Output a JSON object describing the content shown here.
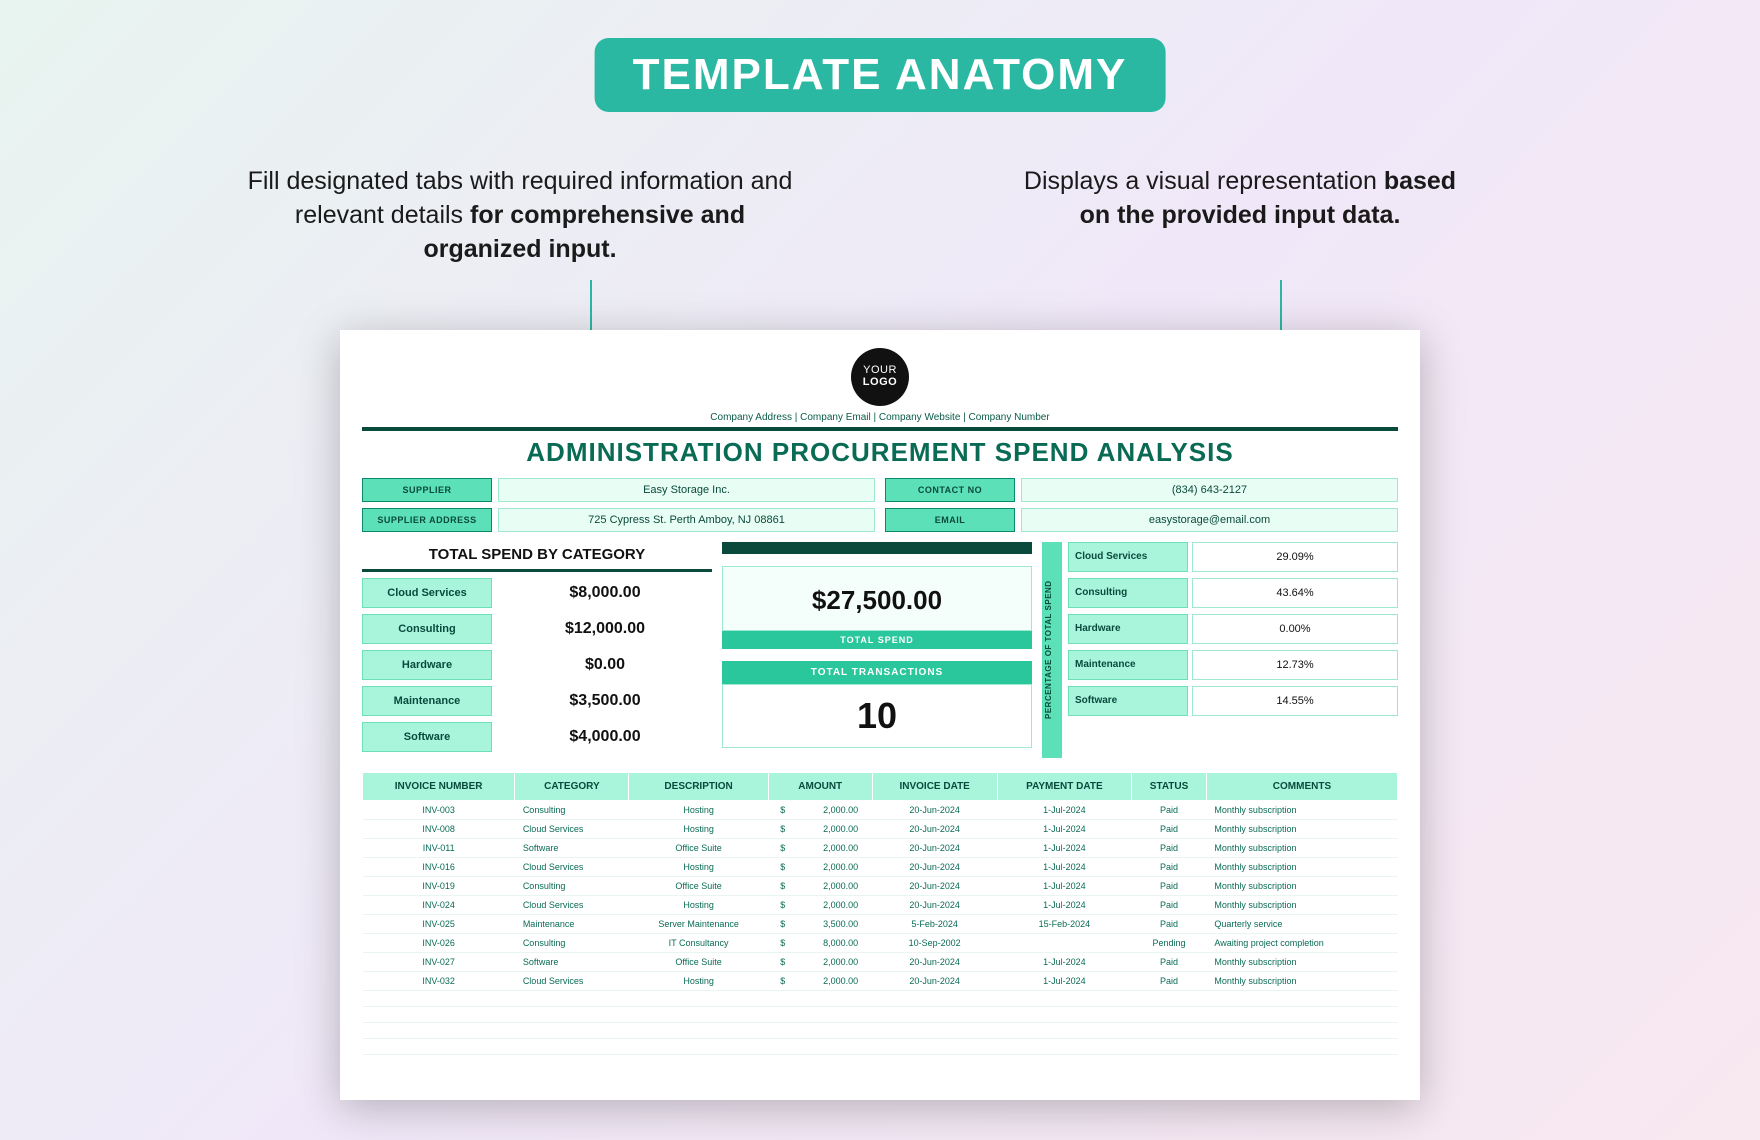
{
  "title": "TEMPLATE ANATOMY",
  "callout_left_a": "Fill designated tabs with required information and relevant details ",
  "callout_left_b": "for comprehensive and organized input.",
  "callout_right_a": "Displays a visual representation ",
  "callout_right_b": "based on the provided input data.",
  "logo_line1": "YOUR",
  "logo_line2": "LOGO",
  "contact_line": "Company Address   |   Company Email   |   Company Website   |   Company Number",
  "doc_title": "ADMINISTRATION PROCUREMENT SPEND ANALYSIS",
  "info": {
    "supplier_lbl": "SUPPLIER",
    "supplier_val": "Easy Storage Inc.",
    "contact_lbl": "CONTACT NO",
    "contact_val": "(834) 643-2127",
    "address_lbl": "SUPPLIER  ADDRESS",
    "address_val": "725 Cypress St. Perth Amboy, NJ 08861",
    "email_lbl": "EMAIL",
    "email_val": "easystorage@email.com"
  },
  "cat_title": "TOTAL SPEND BY CATEGORY",
  "categories": [
    {
      "name": "Cloud Services",
      "amount": "$8,000.00",
      "pct": "29.09%"
    },
    {
      "name": "Consulting",
      "amount": "$12,000.00",
      "pct": "43.64%"
    },
    {
      "name": "Hardware",
      "amount": "$0.00",
      "pct": "0.00%"
    },
    {
      "name": "Maintenance",
      "amount": "$3,500.00",
      "pct": "12.73%"
    },
    {
      "name": "Software",
      "amount": "$4,000.00",
      "pct": "14.55%"
    }
  ],
  "total_spend": "$27,500.00",
  "total_spend_lbl": "TOTAL SPEND",
  "total_trans_lbl": "TOTAL TRANSACTIONS",
  "total_trans": "10",
  "pct_sidebar": "PERCENTAGE OF TOTAL SPEND",
  "tbl": {
    "headers": [
      "INVOICE NUMBER",
      "CATEGORY",
      "DESCRIPTION",
      "AMOUNT",
      "INVOICE DATE",
      "PAYMENT DATE",
      "STATUS",
      "COMMENTS"
    ],
    "rows": [
      [
        "INV-003",
        "Consulting",
        "Hosting",
        "2,000.00",
        "20-Jun-2024",
        "1-Jul-2024",
        "Paid",
        "Monthly subscription"
      ],
      [
        "INV-008",
        "Cloud Services",
        "Hosting",
        "2,000.00",
        "20-Jun-2024",
        "1-Jul-2024",
        "Paid",
        "Monthly subscription"
      ],
      [
        "INV-011",
        "Software",
        "Office Suite",
        "2,000.00",
        "20-Jun-2024",
        "1-Jul-2024",
        "Paid",
        "Monthly subscription"
      ],
      [
        "INV-016",
        "Cloud Services",
        "Hosting",
        "2,000.00",
        "20-Jun-2024",
        "1-Jul-2024",
        "Paid",
        "Monthly subscription"
      ],
      [
        "INV-019",
        "Consulting",
        "Office Suite",
        "2,000.00",
        "20-Jun-2024",
        "1-Jul-2024",
        "Paid",
        "Monthly subscription"
      ],
      [
        "INV-024",
        "Cloud Services",
        "Hosting",
        "2,000.00",
        "20-Jun-2024",
        "1-Jul-2024",
        "Paid",
        "Monthly subscription"
      ],
      [
        "INV-025",
        "Maintenance",
        "Server Maintenance",
        "3,500.00",
        "5-Feb-2024",
        "15-Feb-2024",
        "Paid",
        "Quarterly service"
      ],
      [
        "INV-026",
        "Consulting",
        "IT Consultancy",
        "8,000.00",
        "10-Sep-2002",
        "",
        "Pending",
        "Awaiting project completion"
      ],
      [
        "INV-027",
        "Software",
        "Office Suite",
        "2,000.00",
        "20-Jun-2024",
        "1-Jul-2024",
        "Paid",
        "Monthly subscription"
      ],
      [
        "INV-032",
        "Cloud Services",
        "Hosting",
        "2,000.00",
        "20-Jun-2024",
        "1-Jul-2024",
        "Paid",
        "Monthly subscription"
      ]
    ]
  },
  "colors": {
    "brand": "#2bb8a3",
    "dark_green": "#0a4a3c",
    "light_green": "#a8f5dc",
    "pale_green": "#e8fdf4"
  }
}
